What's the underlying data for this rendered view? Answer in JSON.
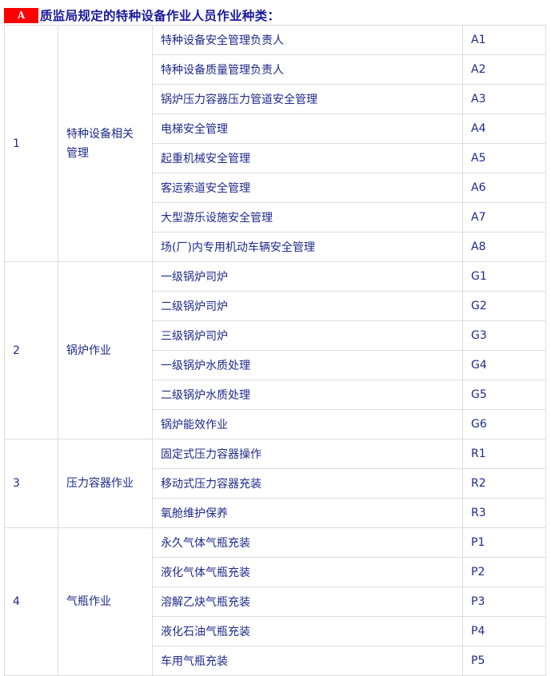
{
  "heading": {
    "badge": "A",
    "title": "质监局规定的特种设备作业人员作业种类："
  },
  "groups": [
    {
      "no": "1",
      "name": "特种设备相关管理",
      "items": [
        {
          "name": "特种设备安全管理负责人",
          "code": "A1"
        },
        {
          "name": "特种设备质量管理负责人",
          "code": "A2"
        },
        {
          "name": "锅炉压力容器压力管道安全管理",
          "code": "A3"
        },
        {
          "name": "电梯安全管理",
          "code": "A4"
        },
        {
          "name": "起重机械安全管理",
          "code": "A5"
        },
        {
          "name": "客运索道安全管理",
          "code": "A6"
        },
        {
          "name": "大型游乐设施安全管理",
          "code": "A7"
        },
        {
          "name": "场(厂)内专用机动车辆安全管理",
          "code": "A8"
        }
      ]
    },
    {
      "no": "2",
      "name": "锅炉作业",
      "items": [
        {
          "name": "一级锅炉司炉",
          "code": "G1"
        },
        {
          "name": "二级锅炉司炉",
          "code": "G2"
        },
        {
          "name": "三级锅炉司炉",
          "code": "G3"
        },
        {
          "name": "一级锅炉水质处理",
          "code": "G4"
        },
        {
          "name": "二级锅炉水质处理",
          "code": "G5"
        },
        {
          "name": "锅炉能效作业",
          "code": "G6"
        }
      ]
    },
    {
      "no": "3",
      "name": "压力容器作业",
      "items": [
        {
          "name": "固定式压力容器操作",
          "code": "R1"
        },
        {
          "name": "移动式压力容器充装",
          "code": "R2"
        },
        {
          "name": "氧舱维护保养",
          "code": "R3"
        }
      ]
    },
    {
      "no": "4",
      "name": "气瓶作业",
      "items": [
        {
          "name": "永久气体气瓶充装",
          "code": "P1"
        },
        {
          "name": "液化气体气瓶充装",
          "code": "P2"
        },
        {
          "name": "溶解乙炔气瓶充装",
          "code": "P3"
        },
        {
          "name": "液化石油气瓶充装",
          "code": "P4"
        },
        {
          "name": "车用气瓶充装",
          "code": "P5"
        }
      ]
    }
  ]
}
